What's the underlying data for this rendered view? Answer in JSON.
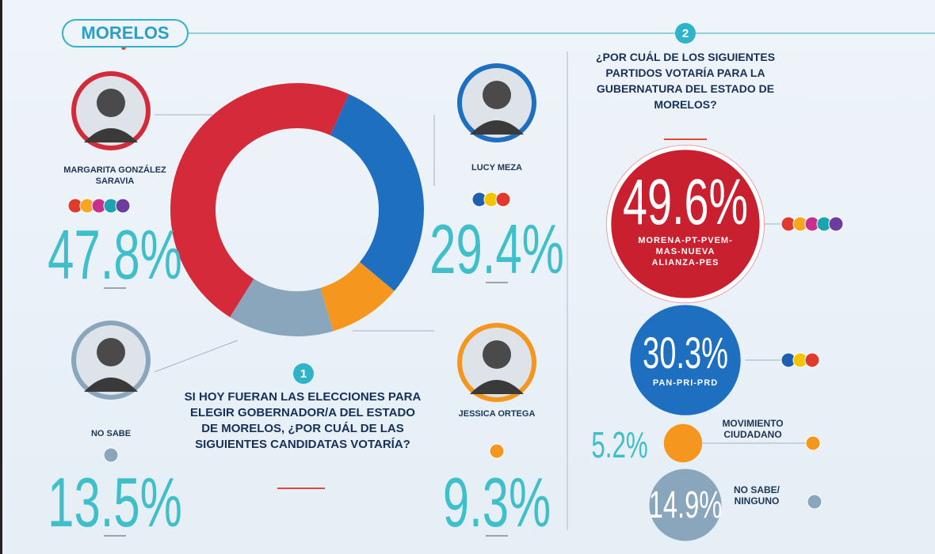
{
  "header": {
    "title": "MORELOS"
  },
  "chart_data": [
    {
      "type": "donut",
      "number": "1",
      "question": "SI HOY FUERAN LAS ELECCIONES PARA ELEGIR GOBERNADOR/A DEL ESTADO DE MORELOS, ¿POR CUÁL DE LAS SIGUIENTES CANDIDATAS VOTARÍA?",
      "categories": [
        "MARGARITA GONZÁLEZ SARAVIA",
        "LUCY MEZA",
        "JESSICA ORTEGA",
        "NO SABE"
      ],
      "values": [
        47.8,
        29.4,
        9.3,
        13.5
      ],
      "value_labels": [
        "47.8%",
        "29.4%",
        "9.3%",
        "13.5%"
      ],
      "colors": [
        "#d42a3a",
        "#1f6fc0",
        "#f5961e",
        "#8aa6bc"
      ]
    },
    {
      "type": "bubble",
      "number": "2",
      "question": "¿POR CUÁL DE LOS SIGUIENTES PARTIDOS VOTARÍA PARA LA GUBERNATURA DEL ESTADO DE MORELOS?",
      "categories": [
        "MORENA-PT-PVEM-MAS-NUEVA ALIANZA-PES",
        "PAN-PRI-PRD",
        "MOVIMIENTO CIUDADANO",
        "NO SABE/ NINGUNO"
      ],
      "values": [
        49.6,
        30.3,
        5.2,
        14.9
      ],
      "value_labels": [
        "49.6%",
        "30.3%",
        "5.2%",
        "14.9%"
      ],
      "colors": [
        "#c8202f",
        "#1f6fc0",
        "#f5961e",
        "#8aa6bc"
      ]
    }
  ]
}
